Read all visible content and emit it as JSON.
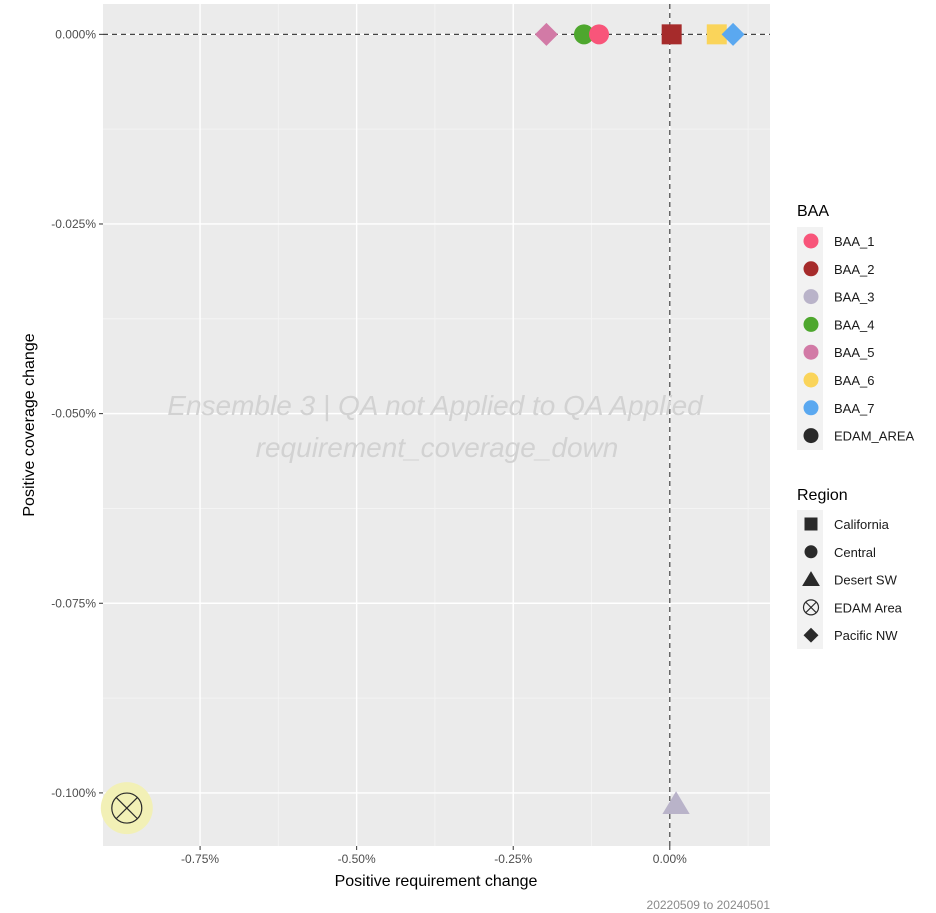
{
  "chart_data": {
    "type": "scatter",
    "xlabel": "Positive requirement change",
    "ylabel": "Positive coverage change",
    "xlim": [
      -0.00905,
      0.0016
    ],
    "ylim": [
      -0.00107,
      4e-05
    ],
    "x_ticks": [
      {
        "value": -0.0075,
        "label": "-0.75%"
      },
      {
        "value": -0.005,
        "label": "-0.50%"
      },
      {
        "value": -0.0025,
        "label": "-0.25%"
      },
      {
        "value": 0.0,
        "label": "0.00%"
      }
    ],
    "y_ticks": [
      {
        "value": 0.0,
        "label": "0.000%"
      },
      {
        "value": -0.00025,
        "label": "-0.025%"
      },
      {
        "value": -0.0005,
        "label": "-0.050%"
      },
      {
        "value": -0.00075,
        "label": "-0.075%"
      },
      {
        "value": -0.001,
        "label": "-0.100%"
      }
    ],
    "reference_lines": {
      "x": 0.0,
      "y": 0.0,
      "style": "dashed"
    },
    "grid": true,
    "watermark": [
      "Ensemble 3 | QA not Applied to QA Applied",
      "requirement_coverage_down"
    ],
    "caption": "20220509 to 20240501",
    "legend_position": "right",
    "legends": {
      "color": {
        "title": "BAA",
        "entries": [
          {
            "name": "BAA_1",
            "color": "#f8557a"
          },
          {
            "name": "BAA_2",
            "color": "#a62b2b"
          },
          {
            "name": "BAA_3",
            "color": "#b9b3c9"
          },
          {
            "name": "BAA_4",
            "color": "#4ea72e"
          },
          {
            "name": "BAA_5",
            "color": "#d27aa6"
          },
          {
            "name": "BAA_6",
            "color": "#fad45a"
          },
          {
            "name": "BAA_7",
            "color": "#5aa8f0"
          },
          {
            "name": "EDAM_AREA",
            "color": "#2a2a2a"
          }
        ]
      },
      "shape": {
        "title": "Region",
        "entries": [
          {
            "name": "California",
            "shape": "square"
          },
          {
            "name": "Central",
            "shape": "circle"
          },
          {
            "name": "Desert SW",
            "shape": "triangle"
          },
          {
            "name": "EDAM Area",
            "shape": "circle-x"
          },
          {
            "name": "Pacific NW",
            "shape": "diamond"
          }
        ]
      }
    },
    "points": [
      {
        "baa": "BAA_5",
        "region": "Pacific NW",
        "x": -0.00197,
        "y": 0.0
      },
      {
        "baa": "BAA_4",
        "region": "Central",
        "x": -0.00137,
        "y": 0.0
      },
      {
        "baa": "BAA_1",
        "region": "Central",
        "x": -0.00113,
        "y": 0.0
      },
      {
        "baa": "BAA_2",
        "region": "California",
        "x": 3e-05,
        "y": 0.0
      },
      {
        "baa": "BAA_6",
        "region": "California",
        "x": 0.00075,
        "y": 0.0
      },
      {
        "baa": "BAA_7",
        "region": "Pacific NW",
        "x": 0.00101,
        "y": 0.0
      },
      {
        "baa": "BAA_3",
        "region": "Desert SW",
        "x": 0.0001,
        "y": -0.001015
      },
      {
        "baa": "EDAM_AREA",
        "region": "EDAM Area",
        "x": -0.00867,
        "y": -0.00102,
        "highlight": "#f2f0b6"
      }
    ]
  }
}
